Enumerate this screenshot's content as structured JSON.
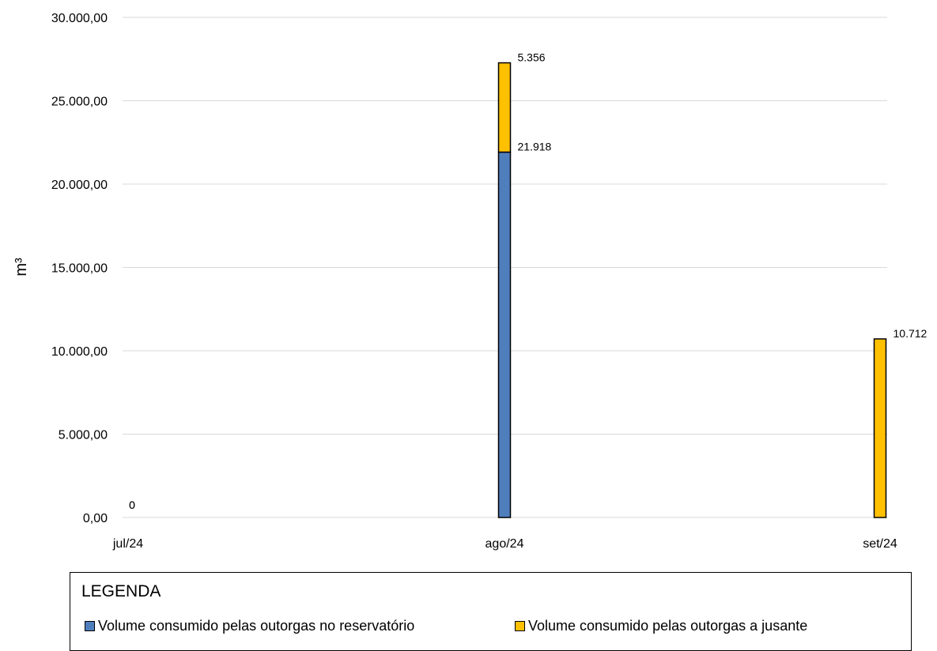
{
  "chart_data": {
    "type": "bar",
    "stacked": true,
    "categories": [
      "jul/24",
      "ago/24",
      "set/24"
    ],
    "series": [
      {
        "name": "Volume consumido pelas outorgas no reservatório",
        "color": "#4f7ebd",
        "values": [
          0,
          21918,
          0
        ]
      },
      {
        "name": "Volume consumido pelas outorgas a jusante",
        "color": "#ffc000",
        "values": [
          0,
          5356,
          10712
        ]
      }
    ],
    "data_labels": [
      {
        "category": "jul/24",
        "series": 0,
        "text": "0"
      },
      {
        "category": "jul/24",
        "series": 1,
        "text": "0"
      },
      {
        "category": "ago/24",
        "series": 0,
        "text": "21.918"
      },
      {
        "category": "ago/24",
        "series": 1,
        "text": "5.356"
      },
      {
        "category": "set/24",
        "series": 1,
        "text": "10.712"
      }
    ],
    "ylabel": "m³",
    "ylim": [
      0,
      30000
    ],
    "yticks": [
      "0,00",
      "5.000,00",
      "10.000,00",
      "15.000,00",
      "20.000,00",
      "25.000,00",
      "30.000,00"
    ],
    "grid": true,
    "legend_title": "LEGENDA",
    "legend_position": "bottom"
  }
}
